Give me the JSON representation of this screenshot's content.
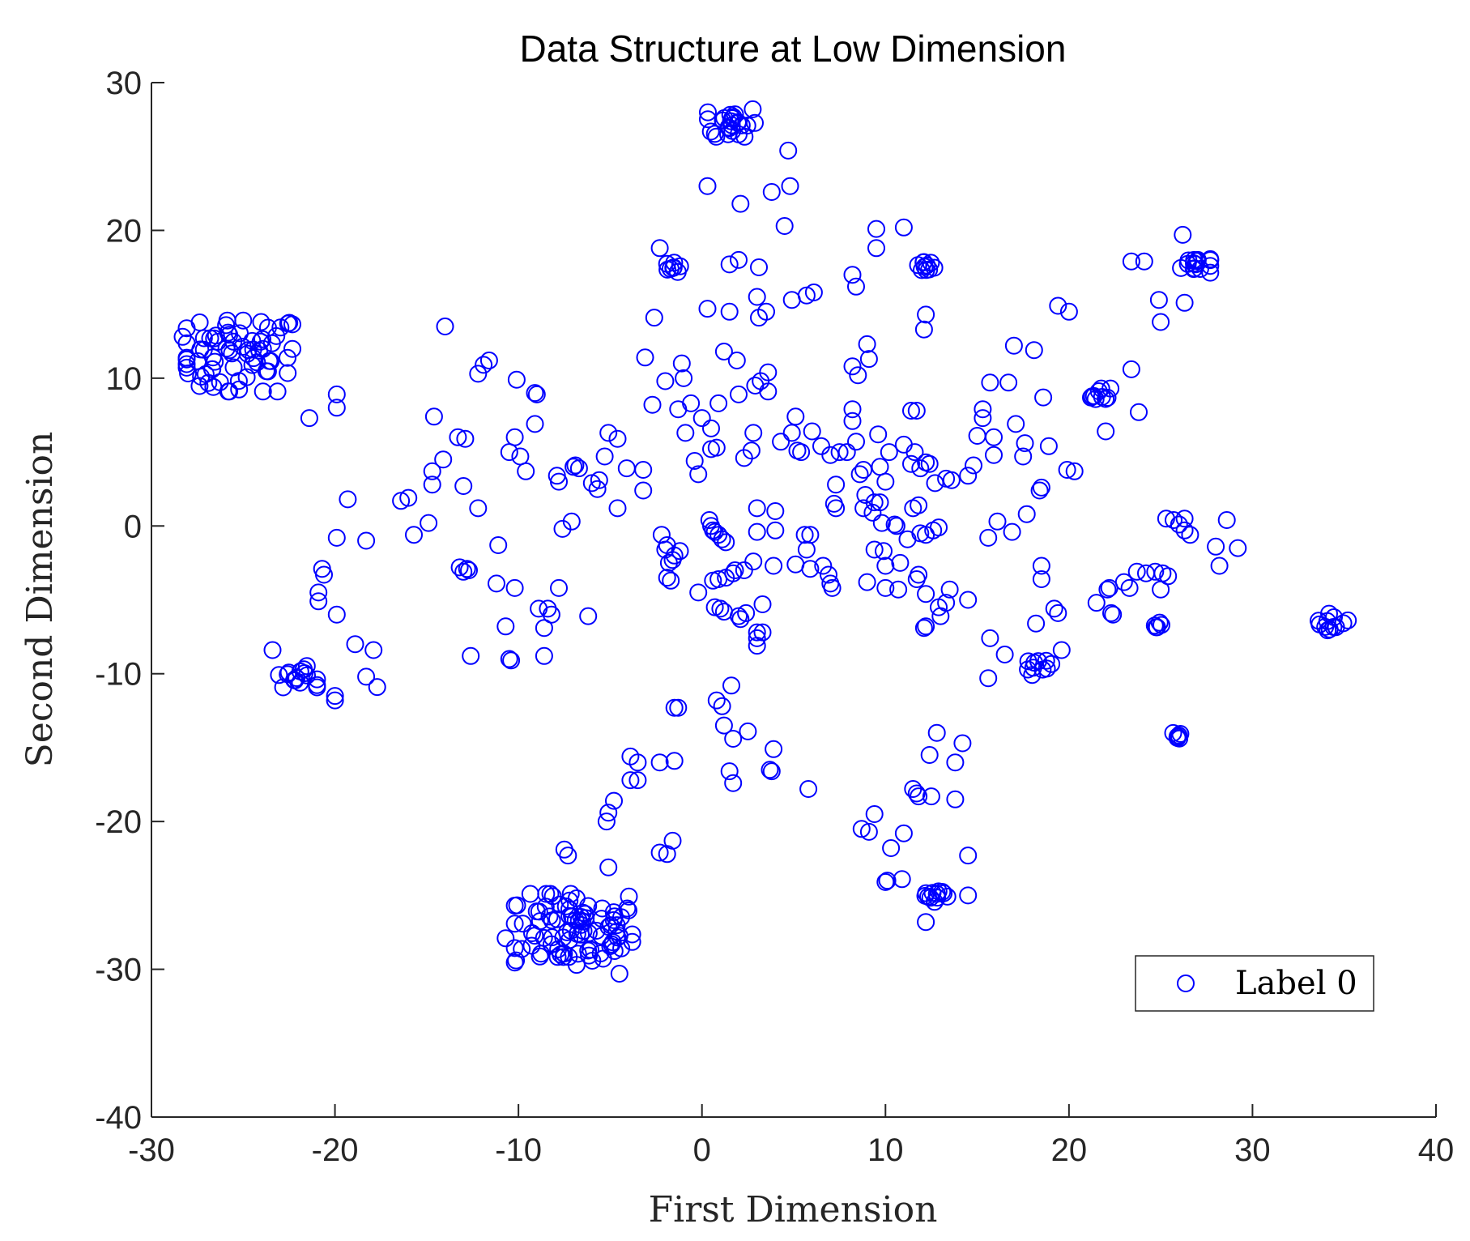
{
  "chart_data": {
    "type": "scatter",
    "title": "Data Structure at Low Dimension",
    "xlabel": "First Dimension",
    "ylabel": "Second Dimension",
    "xlim": [
      -30,
      40
    ],
    "ylim": [
      -40,
      30
    ],
    "xticks": [
      -30,
      -20,
      -10,
      0,
      10,
      20,
      30,
      40
    ],
    "yticks": [
      -40,
      -30,
      -20,
      -10,
      0,
      10,
      20,
      30
    ],
    "xtick_labels": [
      "-30",
      "-20",
      "-10",
      "0",
      "10",
      "20",
      "30",
      "40"
    ],
    "ytick_labels": [
      "-40",
      "-30",
      "-20",
      "-10",
      "0",
      "10",
      "20",
      "30"
    ],
    "grid": false,
    "legend": {
      "position": "bottom-right",
      "entries": [
        "Label 0"
      ]
    },
    "marker": "open-circle",
    "color": "#0000ff",
    "clusters": [
      {
        "center": [
          -25.2,
          11.5
        ],
        "spread": [
          1.8,
          1.5
        ],
        "count": 70
      },
      {
        "center": [
          -7.0,
          -27.3
        ],
        "spread": [
          2.0,
          1.5
        ],
        "count": 90
      },
      {
        "center": [
          1.6,
          27.3
        ],
        "spread": [
          0.8,
          0.6
        ],
        "count": 25
      },
      {
        "center": [
          -22.1,
          -10.2
        ],
        "spread": [
          0.7,
          0.45
        ],
        "count": 15
      },
      {
        "center": [
          -1.5,
          17.5
        ],
        "spread": [
          0.25,
          0.2
        ],
        "count": 8
      },
      {
        "center": [
          12.1,
          17.6
        ],
        "spread": [
          0.35,
          0.3
        ],
        "count": 10
      },
      {
        "center": [
          26.9,
          17.7
        ],
        "spread": [
          0.5,
          0.35
        ],
        "count": 15
      },
      {
        "center": [
          21.7,
          8.9
        ],
        "spread": [
          0.35,
          0.25
        ],
        "count": 10
      },
      {
        "center": [
          34.4,
          -6.5
        ],
        "spread": [
          0.5,
          0.35
        ],
        "count": 12
      },
      {
        "center": [
          18.4,
          -9.6
        ],
        "spread": [
          0.4,
          0.3
        ],
        "count": 10
      },
      {
        "center": [
          12.7,
          -25.0
        ],
        "spread": [
          0.5,
          0.35
        ],
        "count": 12
      },
      {
        "center": [
          26.0,
          -14.2
        ],
        "spread": [
          0.2,
          0.15
        ],
        "count": 6
      },
      {
        "center": [
          24.8,
          -6.7
        ],
        "spread": [
          0.15,
          0.1
        ],
        "count": 5
      }
    ],
    "points": [
      [
        -28.3,
        12.8
      ],
      [
        -27.3,
        10.1
      ],
      [
        -21.4,
        7.3
      ],
      [
        -19.9,
        8.9
      ],
      [
        -19.9,
        8.0
      ],
      [
        -19.3,
        1.8
      ],
      [
        -19.9,
        -0.8
      ],
      [
        -18.3,
        -1.0
      ],
      [
        -16.4,
        1.7
      ],
      [
        -16.0,
        1.9
      ],
      [
        -15.7,
        -0.6
      ],
      [
        -14.9,
        0.2
      ],
      [
        -14.7,
        3.7
      ],
      [
        -14.7,
        2.8
      ],
      [
        -14.6,
        7.4
      ],
      [
        -14.1,
        4.5
      ],
      [
        -14.0,
        13.5
      ],
      [
        -13.3,
        6.0
      ],
      [
        -12.9,
        5.9
      ],
      [
        -13.0,
        2.7
      ],
      [
        -12.2,
        1.2
      ],
      [
        -12.2,
        10.3
      ],
      [
        -11.9,
        10.9
      ],
      [
        -11.6,
        11.2
      ],
      [
        -11.1,
        -1.3
      ],
      [
        -20.7,
        -2.9
      ],
      [
        -20.6,
        -3.3
      ],
      [
        -20.9,
        -4.5
      ],
      [
        -20.9,
        -5.1
      ],
      [
        -19.9,
        -6.0
      ],
      [
        -18.9,
        -8.0
      ],
      [
        -18.3,
        -10.2
      ],
      [
        -17.9,
        -8.4
      ],
      [
        -17.7,
        -10.9
      ],
      [
        -20.0,
        -11.5
      ],
      [
        -20.0,
        -11.8
      ],
      [
        -23.4,
        -8.4
      ],
      [
        -13.2,
        -2.8
      ],
      [
        -13.0,
        -3.1
      ],
      [
        -12.8,
        -2.9
      ],
      [
        -12.7,
        -3.0
      ],
      [
        -12.6,
        -8.8
      ],
      [
        -11.2,
        -3.9
      ],
      [
        -10.7,
        -6.8
      ],
      [
        -10.5,
        -9.0
      ],
      [
        -10.4,
        -9.1
      ],
      [
        -10.2,
        -4.2
      ],
      [
        -10.5,
        5.0
      ],
      [
        -10.2,
        6.0
      ],
      [
        -10.1,
        9.9
      ],
      [
        -9.9,
        4.7
      ],
      [
        -9.6,
        3.7
      ],
      [
        -9.1,
        6.9
      ],
      [
        -9.1,
        9.0
      ],
      [
        -9.0,
        8.9
      ],
      [
        -8.9,
        -5.6
      ],
      [
        -8.6,
        -6.9
      ],
      [
        -8.6,
        -8.8
      ],
      [
        -8.4,
        -5.6
      ],
      [
        -8.2,
        -6.0
      ],
      [
        -7.8,
        -4.2
      ],
      [
        -7.9,
        3.4
      ],
      [
        -7.8,
        3.0
      ],
      [
        -7.6,
        -0.2
      ],
      [
        -7.1,
        0.3
      ],
      [
        -7.0,
        4.0
      ],
      [
        -6.9,
        4.1
      ],
      [
        -6.7,
        3.9
      ],
      [
        -6.2,
        -6.1
      ],
      [
        -6.0,
        2.9
      ],
      [
        -5.7,
        2.5
      ],
      [
        -5.6,
        3.1
      ],
      [
        -5.3,
        4.7
      ],
      [
        -5.1,
        6.3
      ],
      [
        -4.6,
        5.9
      ],
      [
        -4.6,
        1.2
      ],
      [
        -4.1,
        3.9
      ],
      [
        -3.2,
        3.8
      ],
      [
        -3.2,
        2.4
      ],
      [
        -3.1,
        11.4
      ],
      [
        -2.7,
        8.2
      ],
      [
        -2.6,
        14.1
      ],
      [
        -2.3,
        18.8
      ],
      [
        -2.2,
        -0.6
      ],
      [
        -1.9,
        -1.3
      ],
      [
        -2.0,
        -1.6
      ],
      [
        -1.8,
        -2.5
      ],
      [
        -1.6,
        -2.3
      ],
      [
        -1.5,
        -2.0
      ],
      [
        -1.2,
        -1.7
      ],
      [
        -1.9,
        -3.5
      ],
      [
        -1.7,
        -3.7
      ],
      [
        -2.0,
        9.8
      ],
      [
        -1.3,
        7.9
      ],
      [
        -1.1,
        11.0
      ],
      [
        -1.0,
        10.0
      ],
      [
        -0.9,
        6.3
      ],
      [
        -0.6,
        8.3
      ],
      [
        -0.4,
        4.4
      ],
      [
        -0.2,
        3.5
      ],
      [
        0.0,
        7.3
      ],
      [
        0.3,
        23.0
      ],
      [
        0.3,
        14.7
      ],
      [
        0.4,
        0.4
      ],
      [
        0.5,
        0.0
      ],
      [
        0.6,
        -0.3
      ],
      [
        0.7,
        -0.4
      ],
      [
        0.9,
        -0.6
      ],
      [
        1.1,
        -0.9
      ],
      [
        1.3,
        -1.1
      ],
      [
        0.5,
        6.6
      ],
      [
        0.5,
        5.2
      ],
      [
        0.8,
        5.3
      ],
      [
        0.9,
        8.3
      ],
      [
        1.2,
        11.8
      ],
      [
        1.5,
        14.5
      ],
      [
        1.5,
        17.7
      ],
      [
        2.0,
        18.0
      ],
      [
        1.9,
        11.2
      ],
      [
        2.0,
        8.9
      ],
      [
        2.3,
        4.6
      ],
      [
        2.7,
        5.1
      ],
      [
        2.8,
        6.3
      ],
      [
        2.9,
        9.5
      ],
      [
        3.1,
        14.1
      ],
      [
        3.1,
        17.5
      ],
      [
        3.0,
        15.5
      ],
      [
        3.5,
        14.5
      ],
      [
        3.2,
        9.8
      ],
      [
        3.6,
        10.4
      ],
      [
        3.6,
        9.1
      ],
      [
        3.8,
        22.6
      ],
      [
        2.1,
        21.8
      ],
      [
        4.5,
        20.3
      ],
      [
        4.8,
        23.0
      ],
      [
        4.7,
        25.4
      ],
      [
        4.9,
        15.3
      ],
      [
        4.3,
        5.7
      ],
      [
        4.9,
        6.3
      ],
      [
        5.1,
        7.4
      ],
      [
        5.2,
        5.1
      ],
      [
        5.4,
        5.0
      ],
      [
        5.7,
        15.6
      ],
      [
        6.1,
        15.8
      ],
      [
        6.0,
        6.4
      ],
      [
        6.5,
        5.4
      ],
      [
        7.0,
        4.8
      ],
      [
        7.3,
        2.8
      ],
      [
        7.5,
        5.0
      ],
      [
        7.9,
        5.0
      ],
      [
        7.2,
        1.5
      ],
      [
        7.3,
        1.2
      ],
      [
        8.2,
        17.0
      ],
      [
        8.4,
        16.2
      ],
      [
        8.2,
        10.8
      ],
      [
        8.5,
        10.2
      ],
      [
        8.2,
        7.9
      ],
      [
        8.2,
        7.1
      ],
      [
        8.4,
        5.7
      ],
      [
        8.6,
        3.5
      ],
      [
        8.8,
        3.8
      ],
      [
        9.0,
        12.3
      ],
      [
        9.1,
        11.3
      ],
      [
        8.9,
        2.1
      ],
      [
        8.8,
        1.2
      ],
      [
        9.4,
        1.6
      ],
      [
        9.7,
        1.6
      ],
      [
        9.8,
        0.2
      ],
      [
        9.3,
        0.9
      ],
      [
        9.6,
        6.2
      ],
      [
        9.7,
        4.0
      ],
      [
        10.0,
        3.0
      ],
      [
        10.2,
        5.0
      ],
      [
        9.5,
        20.1
      ],
      [
        9.5,
        18.8
      ],
      [
        11.0,
        20.2
      ],
      [
        11.0,
        5.5
      ],
      [
        11.4,
        4.2
      ],
      [
        11.4,
        7.8
      ],
      [
        11.7,
        7.8
      ],
      [
        11.6,
        5.0
      ],
      [
        11.9,
        3.9
      ],
      [
        12.2,
        4.3
      ],
      [
        12.4,
        4.2
      ],
      [
        12.7,
        2.9
      ],
      [
        10.5,
        0.1
      ],
      [
        10.6,
        0.0
      ],
      [
        11.2,
        -0.9
      ],
      [
        11.5,
        1.2
      ],
      [
        11.8,
        1.4
      ],
      [
        11.9,
        -0.5
      ],
      [
        12.2,
        -0.6
      ],
      [
        12.6,
        -0.3
      ],
      [
        12.9,
        -0.1
      ],
      [
        13.3,
        3.2
      ],
      [
        13.6,
        3.1
      ],
      [
        14.5,
        3.4
      ],
      [
        14.8,
        4.1
      ],
      [
        12.2,
        14.3
      ],
      [
        12.1,
        13.3
      ],
      [
        15.0,
        6.1
      ],
      [
        15.3,
        7.9
      ],
      [
        15.3,
        7.3
      ],
      [
        15.7,
        9.7
      ],
      [
        15.9,
        4.8
      ],
      [
        15.9,
        6.0
      ],
      [
        16.7,
        9.7
      ],
      [
        17.0,
        12.2
      ],
      [
        17.1,
        6.9
      ],
      [
        17.6,
        5.6
      ],
      [
        17.5,
        4.7
      ],
      [
        17.7,
        0.8
      ],
      [
        16.9,
        -0.4
      ],
      [
        16.1,
        0.3
      ],
      [
        15.6,
        -0.8
      ],
      [
        18.1,
        11.9
      ],
      [
        18.6,
        8.7
      ],
      [
        18.9,
        5.4
      ],
      [
        19.4,
        14.9
      ],
      [
        20.0,
        14.5
      ],
      [
        19.9,
        3.8
      ],
      [
        20.3,
        3.7
      ],
      [
        18.4,
        2.4
      ],
      [
        18.5,
        2.6
      ],
      [
        22.0,
        6.4
      ],
      [
        23.4,
        10.6
      ],
      [
        23.4,
        17.9
      ],
      [
        24.1,
        17.9
      ],
      [
        24.9,
        15.3
      ],
      [
        25.0,
        13.8
      ],
      [
        23.8,
        7.7
      ],
      [
        26.2,
        19.7
      ],
      [
        26.3,
        15.1
      ],
      [
        25.3,
        0.5
      ],
      [
        25.7,
        0.4
      ],
      [
        26.0,
        0.1
      ],
      [
        26.3,
        0.5
      ],
      [
        26.3,
        -0.3
      ],
      [
        26.6,
        -0.6
      ],
      [
        28.0,
        -1.4
      ],
      [
        28.2,
        -2.7
      ],
      [
        28.6,
        0.4
      ],
      [
        29.2,
        -1.5
      ],
      [
        21.5,
        -5.2
      ],
      [
        22.1,
        -4.3
      ],
      [
        22.2,
        -4.2
      ],
      [
        22.3,
        -5.9
      ],
      [
        22.4,
        -6.0
      ],
      [
        23.0,
        -3.8
      ],
      [
        23.3,
        -4.2
      ],
      [
        23.7,
        -3.1
      ],
      [
        24.2,
        -3.2
      ],
      [
        24.7,
        -3.1
      ],
      [
        25.1,
        -3.2
      ],
      [
        25.4,
        -3.4
      ],
      [
        25.0,
        -4.3
      ],
      [
        18.5,
        -2.7
      ],
      [
        18.5,
        -3.6
      ],
      [
        19.2,
        -5.6
      ],
      [
        19.4,
        -5.9
      ],
      [
        18.2,
        -6.6
      ],
      [
        19.6,
        -8.4
      ],
      [
        16.5,
        -8.7
      ],
      [
        15.6,
        -10.3
      ],
      [
        15.7,
        -7.6
      ],
      [
        14.5,
        -5.0
      ],
      [
        13.3,
        -5.2
      ],
      [
        13.0,
        -6.1
      ],
      [
        12.9,
        -5.5
      ],
      [
        13.5,
        -4.3
      ],
      [
        12.2,
        -6.8
      ],
      [
        12.1,
        -6.9
      ],
      [
        12.2,
        -4.6
      ],
      [
        11.8,
        -3.3
      ],
      [
        11.7,
        -3.6
      ],
      [
        10.8,
        -2.5
      ],
      [
        10.0,
        -2.7
      ],
      [
        9.9,
        -1.7
      ],
      [
        9.4,
        -1.6
      ],
      [
        9.0,
        -3.8
      ],
      [
        10.0,
        -4.2
      ],
      [
        10.7,
        -4.3
      ],
      [
        12.8,
        -14.0
      ],
      [
        12.4,
        -15.5
      ],
      [
        13.8,
        -16.0
      ],
      [
        14.2,
        -14.7
      ],
      [
        13.8,
        -18.5
      ],
      [
        12.5,
        -18.3
      ],
      [
        11.8,
        -18.3
      ],
      [
        11.5,
        -17.8
      ],
      [
        11.7,
        -18.1
      ],
      [
        8.7,
        -20.5
      ],
      [
        9.1,
        -20.7
      ],
      [
        9.4,
        -19.5
      ],
      [
        10.3,
        -21.8
      ],
      [
        11.0,
        -20.8
      ],
      [
        10.9,
        -23.9
      ],
      [
        10.0,
        -24.1
      ],
      [
        10.1,
        -24.0
      ],
      [
        12.2,
        -26.8
      ],
      [
        14.5,
        -22.3
      ],
      [
        14.5,
        -25.0
      ],
      [
        3.0,
        1.2
      ],
      [
        3.0,
        -0.4
      ],
      [
        4.0,
        1.0
      ],
      [
        4.0,
        -0.3
      ],
      [
        5.6,
        -0.6
      ],
      [
        5.9,
        -0.6
      ],
      [
        5.7,
        -1.6
      ],
      [
        5.1,
        -2.6
      ],
      [
        5.9,
        -2.9
      ],
      [
        6.6,
        -2.7
      ],
      [
        6.9,
        -3.3
      ],
      [
        7.0,
        -3.9
      ],
      [
        7.1,
        -4.2
      ],
      [
        3.9,
        -2.7
      ],
      [
        2.8,
        -2.4
      ],
      [
        2.3,
        -3.0
      ],
      [
        1.8,
        -3.0
      ],
      [
        1.3,
        -3.5
      ],
      [
        0.6,
        -3.7
      ],
      [
        0.9,
        -3.6
      ],
      [
        1.7,
        -3.2
      ],
      [
        -0.2,
        -4.5
      ],
      [
        0.7,
        -5.5
      ],
      [
        1.0,
        -5.6
      ],
      [
        1.2,
        -5.8
      ],
      [
        2.0,
        -6.1
      ],
      [
        2.1,
        -6.3
      ],
      [
        2.4,
        -5.9
      ],
      [
        3.3,
        -5.3
      ],
      [
        3.0,
        -7.2
      ],
      [
        3.3,
        -7.2
      ],
      [
        3.0,
        -7.6
      ],
      [
        3.0,
        -8.1
      ],
      [
        0.8,
        -11.8
      ],
      [
        1.1,
        -12.2
      ],
      [
        1.6,
        -10.8
      ],
      [
        1.2,
        -13.5
      ],
      [
        1.7,
        -14.4
      ],
      [
        2.5,
        -13.9
      ],
      [
        1.5,
        -16.6
      ],
      [
        1.7,
        -17.4
      ],
      [
        3.7,
        -16.5
      ],
      [
        3.8,
        -16.6
      ],
      [
        3.9,
        -15.1
      ],
      [
        5.8,
        -17.8
      ],
      [
        -1.5,
        -12.3
      ],
      [
        -1.3,
        -12.3
      ],
      [
        -1.5,
        -15.9
      ],
      [
        -2.3,
        -16.0
      ],
      [
        -3.5,
        -16.0
      ],
      [
        -3.9,
        -15.6
      ],
      [
        -3.9,
        -17.2
      ],
      [
        -3.5,
        -17.2
      ],
      [
        -4.8,
        -18.6
      ],
      [
        -5.1,
        -19.4
      ],
      [
        -5.2,
        -20.0
      ],
      [
        -2.3,
        -22.1
      ],
      [
        -1.9,
        -22.2
      ],
      [
        -1.6,
        -21.3
      ],
      [
        -5.1,
        -23.1
      ],
      [
        -7.5,
        -21.9
      ],
      [
        -7.3,
        -22.3
      ],
      [
        -10.7,
        -27.9
      ],
      [
        -4.5,
        -30.3
      ],
      [
        -21.9,
        -10.6
      ]
    ]
  }
}
